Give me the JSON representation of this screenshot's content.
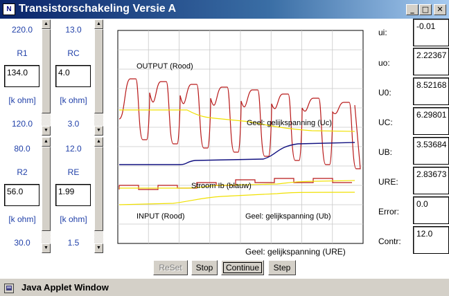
{
  "window": {
    "title": "Transistorschakeling Versie A",
    "icon_label": "N",
    "minimize": "_",
    "maximize": "□",
    "close": "✕"
  },
  "left_panel": {
    "r1": {
      "top_value": "220.0",
      "label": "R1",
      "field": "134.0",
      "unit": "[k ohm]",
      "bottom_value": "120.0"
    },
    "rc": {
      "top_value": "13.0",
      "label": "RC",
      "field": "4.0",
      "unit": "[k ohm]",
      "bottom_value": "3.0"
    },
    "r2": {
      "top_value": "80.0",
      "label": "R2",
      "field": "56.0",
      "unit": "[k ohm]",
      "bottom_value": "30.0"
    },
    "re": {
      "top_value": "12.0",
      "label": "RE",
      "field": "1.99",
      "unit": "[k ohm]",
      "bottom_value": "1.5"
    }
  },
  "graph": {
    "output_label": "OUTPUT (Rood)",
    "uc_label": "Geel: gelijkspanning (Uc)",
    "ib_label": "Stroom Ib (blauw)",
    "input_label": "INPUT (Rood)",
    "ub_label": "Geel: gelijkspanning (Ub)",
    "ure_label": "Geel: gelijkspanning (URE)",
    "colors": {
      "red": "#b81818",
      "yellow": "#f0e000",
      "blue": "#101080",
      "grid": "#c8c8c8"
    }
  },
  "readouts": [
    {
      "label": "ui:",
      "value": "-0.01"
    },
    {
      "label": "uo:",
      "value": "2.22367"
    },
    {
      "label": "U0:",
      "value": "8.52168"
    },
    {
      "label": "UC:",
      "value": "6.29801"
    },
    {
      "label": "UB:",
      "value": "3.53684"
    },
    {
      "label": "URE:",
      "value": "2.83673"
    },
    {
      "label": "Error:",
      "value": "0.0"
    },
    {
      "label": "Contr:",
      "value": "12.0"
    }
  ],
  "buttons": {
    "reset": "ReSet",
    "stop": "Stop",
    "continue": "Continue",
    "step": "Step"
  },
  "status": {
    "text": "Java Applet Window"
  }
}
